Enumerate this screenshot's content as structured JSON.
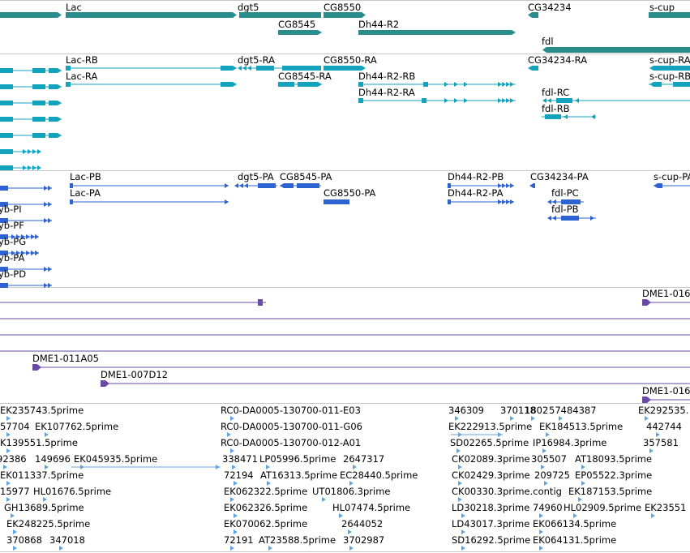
{
  "colors": {
    "gene": "#2a8d8d",
    "transcript": "#13a3bd",
    "protein": "#2d62d2",
    "clone": "#6a4aa5",
    "est": "#64a4dc",
    "separator": "#c8c8c8"
  },
  "tracks": {
    "genes": {
      "features": [
        {
          "label": "Lac"
        },
        {
          "label": "dgt5"
        },
        {
          "label": "CG8550"
        },
        {
          "label": "CG34234"
        },
        {
          "label": "s-cup"
        },
        {
          "label": "CG8545"
        },
        {
          "label": "Dh44-R2"
        },
        {
          "label": "fdl"
        }
      ]
    },
    "transcripts": {
      "labels": [
        "Lac-RB",
        "dgt5-RA",
        "CG8550-RA",
        "CG34234-RA",
        "s-cup-RA",
        "Lac-RA",
        "CG8545-RA",
        "Dh44-R2-RB",
        "s-cup-RB",
        "Dh44-R2-RA",
        "fdl-RC",
        "fdl-RB"
      ]
    },
    "proteins": {
      "labels": [
        "Lac-PB",
        "dgt5-PA",
        "CG8545-PA",
        "Dh44-R2-PB",
        "CG34234-PA",
        "s-cup-PA",
        "Lac-PA",
        "CG8550-PA",
        "Dh44-R2-PA",
        "fdl-PC",
        "fdl-PB",
        "yb-PI",
        "yb-PF",
        "yb-PG",
        "yb-PA",
        "yb-PD"
      ]
    },
    "clones": {
      "labels": [
        "DME1-016",
        "DME1-011A05",
        "DME1-007D12",
        "DME1-016"
      ]
    },
    "ests": {
      "rows": [
        [
          "EK235743.5prime",
          "RC0-DA0005-130700-011-E03",
          "346309",
          "370118",
          "1802",
          "57484387",
          "EK292535."
        ],
        [
          "57704",
          "EK107762.5prime",
          "RC0-DA0005-130700-011-G06",
          "EK222913.5prime",
          "EK184513.5prime",
          "442744"
        ],
        [
          "K139551.5prime",
          "RC0-DA0005-130700-012-A01",
          "SD02265.5prime",
          "IP16984.3prime",
          "357581"
        ],
        [
          "92386",
          "149696",
          "EK045935.5prime",
          "338471",
          "LP05996.5prime",
          "2647317",
          "CK02089.3prime",
          "305507",
          "AT18093.5prime"
        ],
        [
          "EK011337.5prime",
          "72194",
          "AT16313.5prime",
          "EC28440.5prime",
          "CK02429.3prime",
          "209725",
          "EP05522.3prime"
        ],
        [
          "15977",
          "HL01676.5prime",
          "EK062322.5prime",
          "UT01806.3prime",
          "CK00330.3prime.contig",
          "EK187153.5prime"
        ],
        [
          "GH13689.5prime",
          "EK062326.5prime",
          "HL07474.5prime",
          "LD30218.3prime",
          "74960",
          "HL02909.5prime",
          "EK23551"
        ],
        [
          "EK248225.5prime",
          "EK070062.5prime",
          "2644052",
          "LD43017.3prime",
          "EK066134.5prime"
        ],
        [
          "370868",
          "347018",
          "72191",
          "AT23588.5prime",
          "3702987",
          "SD16292.5prime",
          "EK064131.5prime"
        ]
      ]
    }
  }
}
